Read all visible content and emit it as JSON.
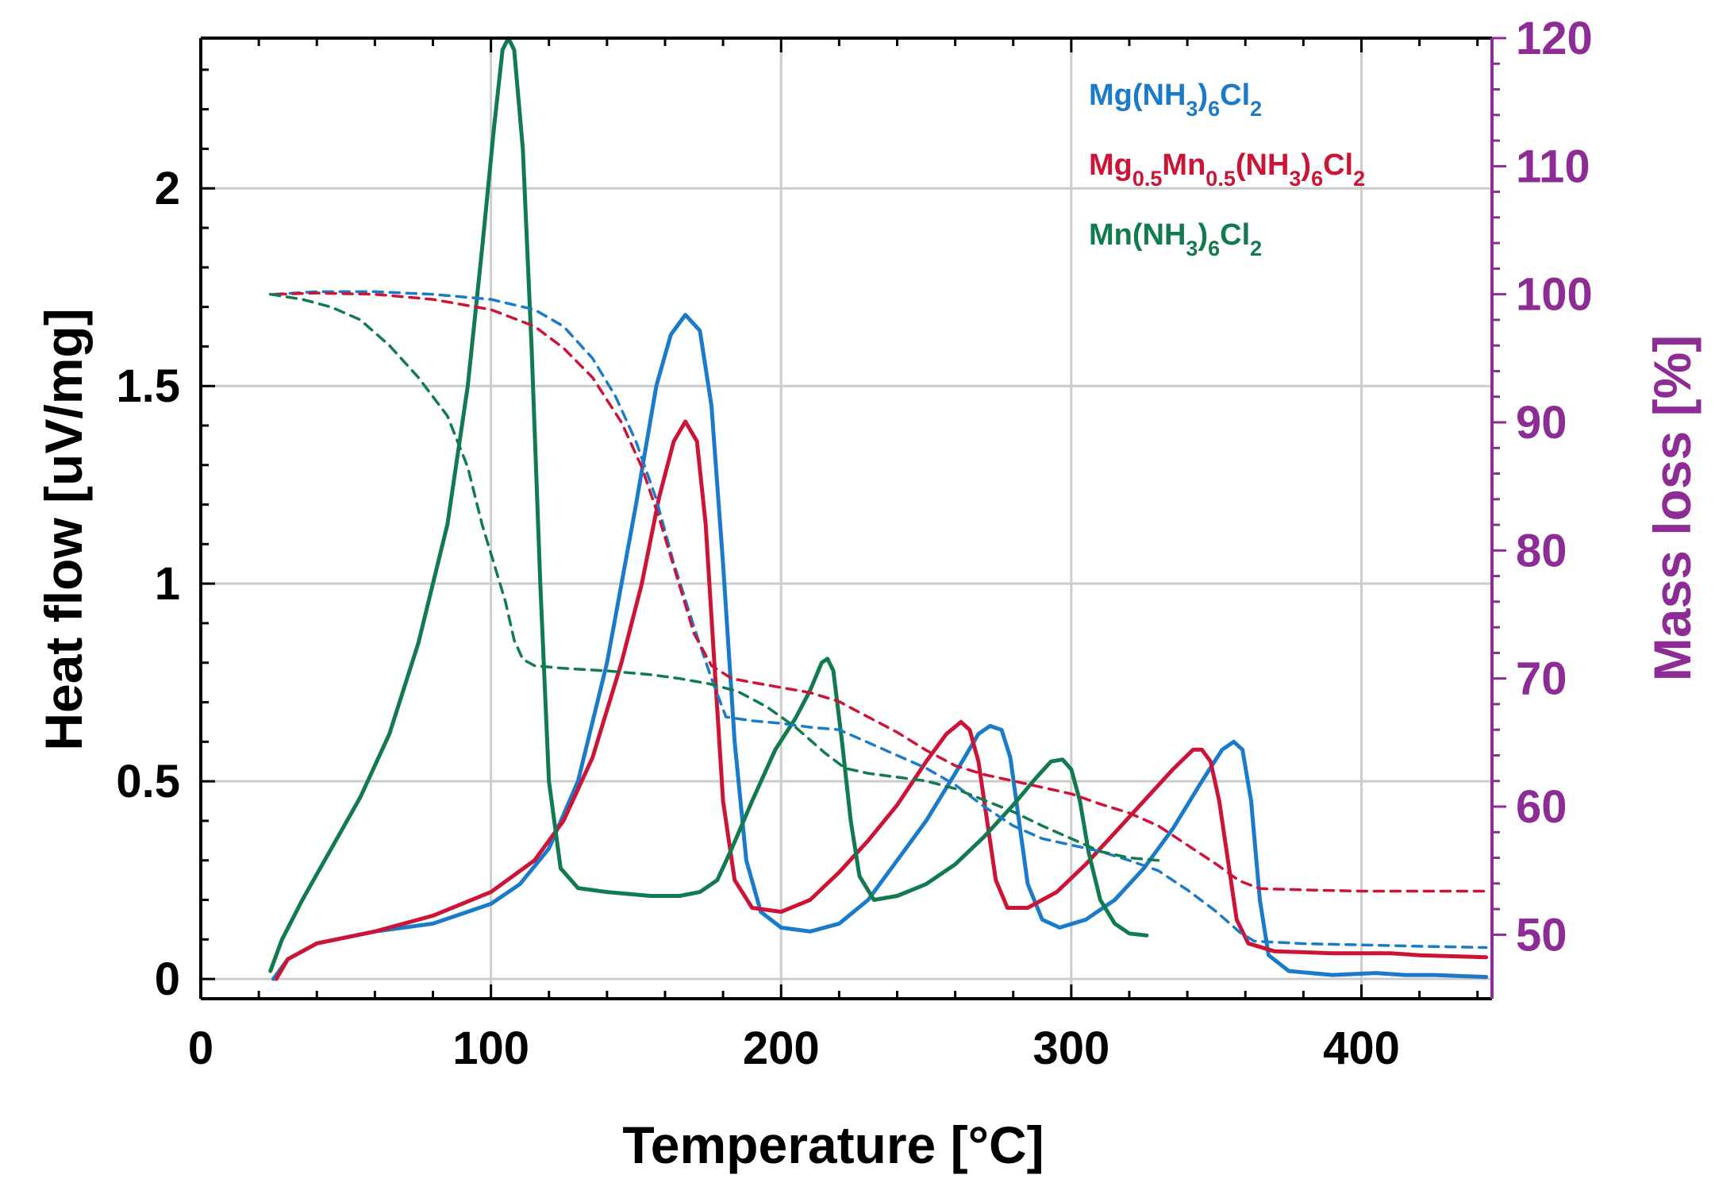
{
  "colors": {
    "blue": "#1b7bc9",
    "red": "#cc1536",
    "green": "#127a4f",
    "purple": "#8e2c95",
    "axis": "#000000",
    "grid": "#cccccc"
  },
  "chart_data": {
    "type": "line",
    "xlabel": "Temperature [°C]",
    "ylabel": "Heat flow [uV/mg]",
    "y2label": "Mass loss [%]",
    "xlim": [
      0,
      445
    ],
    "ylim": [
      -0.05,
      2.38
    ],
    "y2lim": [
      45,
      120
    ],
    "xticks": [
      0,
      100,
      200,
      300,
      400
    ],
    "xtick_labels": [
      "0",
      "100",
      "200",
      "300",
      "400"
    ],
    "yticks": [
      0,
      0.5,
      1,
      1.5,
      2
    ],
    "ytick_labels": [
      "0",
      "0.5",
      "1",
      "1.5",
      "2"
    ],
    "y2ticks": [
      50,
      60,
      70,
      80,
      90,
      100,
      110,
      120
    ],
    "y2tick_labels": [
      "50",
      "60",
      "70",
      "80",
      "90",
      "100",
      "110",
      "120"
    ],
    "grid": true,
    "legend_position": "top-right",
    "legend": [
      {
        "color": "blue",
        "parts": [
          [
            "Mg(NH",
            ""
          ],
          [
            "3",
            "sub"
          ],
          [
            ")",
            ""
          ],
          [
            "6",
            "sub"
          ],
          [
            "Cl",
            ""
          ],
          [
            "2",
            "sub"
          ]
        ]
      },
      {
        "color": "red",
        "parts": [
          [
            "Mg",
            ""
          ],
          [
            "0.5",
            "sub"
          ],
          [
            "Mn",
            ""
          ],
          [
            "0.5",
            "sub"
          ],
          [
            "(NH",
            ""
          ],
          [
            "3",
            "sub"
          ],
          [
            ")",
            ""
          ],
          [
            "6",
            "sub"
          ],
          [
            "Cl",
            ""
          ],
          [
            "2",
            "sub"
          ]
        ]
      },
      {
        "color": "green",
        "parts": [
          [
            "Mn(NH",
            ""
          ],
          [
            "3",
            "sub"
          ],
          [
            ")",
            ""
          ],
          [
            "6",
            "sub"
          ],
          [
            "Cl",
            ""
          ],
          [
            "2",
            "sub"
          ]
        ]
      }
    ],
    "series": [
      {
        "name": "Mg(NH3)6Cl2 heat flow",
        "color": "blue",
        "axis": "left",
        "style": "solid",
        "points": [
          [
            25,
            0
          ],
          [
            30,
            0.05
          ],
          [
            40,
            0.09
          ],
          [
            60,
            0.12
          ],
          [
            80,
            0.14
          ],
          [
            100,
            0.19
          ],
          [
            110,
            0.24
          ],
          [
            120,
            0.33
          ],
          [
            130,
            0.5
          ],
          [
            140,
            0.8
          ],
          [
            150,
            1.2
          ],
          [
            157,
            1.5
          ],
          [
            162,
            1.63
          ],
          [
            167,
            1.68
          ],
          [
            172,
            1.64
          ],
          [
            176,
            1.45
          ],
          [
            180,
            1.05
          ],
          [
            184,
            0.6
          ],
          [
            188,
            0.3
          ],
          [
            193,
            0.17
          ],
          [
            200,
            0.13
          ],
          [
            210,
            0.12
          ],
          [
            220,
            0.14
          ],
          [
            230,
            0.2
          ],
          [
            240,
            0.3
          ],
          [
            250,
            0.4
          ],
          [
            260,
            0.52
          ],
          [
            268,
            0.62
          ],
          [
            272,
            0.64
          ],
          [
            276,
            0.63
          ],
          [
            279,
            0.56
          ],
          [
            282,
            0.4
          ],
          [
            285,
            0.24
          ],
          [
            290,
            0.15
          ],
          [
            296,
            0.13
          ],
          [
            305,
            0.15
          ],
          [
            315,
            0.2
          ],
          [
            325,
            0.28
          ],
          [
            335,
            0.38
          ],
          [
            345,
            0.5
          ],
          [
            352,
            0.58
          ],
          [
            356,
            0.6
          ],
          [
            359,
            0.58
          ],
          [
            362,
            0.45
          ],
          [
            365,
            0.2
          ],
          [
            368,
            0.06
          ],
          [
            375,
            0.02
          ],
          [
            390,
            0.01
          ],
          [
            405,
            0.015
          ],
          [
            415,
            0.01
          ],
          [
            425,
            0.01
          ],
          [
            443,
            0.005
          ]
        ]
      },
      {
        "name": "Mg0.5Mn0.5(NH3)6Cl2 heat flow",
        "color": "red",
        "axis": "left",
        "style": "solid",
        "points": [
          [
            26,
            0
          ],
          [
            30,
            0.05
          ],
          [
            40,
            0.09
          ],
          [
            60,
            0.12
          ],
          [
            80,
            0.16
          ],
          [
            100,
            0.22
          ],
          [
            115,
            0.3
          ],
          [
            125,
            0.4
          ],
          [
            135,
            0.56
          ],
          [
            145,
            0.8
          ],
          [
            152,
            1.0
          ],
          [
            158,
            1.22
          ],
          [
            163,
            1.36
          ],
          [
            167,
            1.41
          ],
          [
            171,
            1.36
          ],
          [
            174,
            1.15
          ],
          [
            177,
            0.8
          ],
          [
            180,
            0.45
          ],
          [
            184,
            0.25
          ],
          [
            190,
            0.18
          ],
          [
            200,
            0.17
          ],
          [
            210,
            0.2
          ],
          [
            220,
            0.27
          ],
          [
            230,
            0.35
          ],
          [
            240,
            0.44
          ],
          [
            250,
            0.55
          ],
          [
            257,
            0.62
          ],
          [
            262,
            0.65
          ],
          [
            265,
            0.63
          ],
          [
            268,
            0.55
          ],
          [
            271,
            0.4
          ],
          [
            274,
            0.25
          ],
          [
            278,
            0.18
          ],
          [
            285,
            0.18
          ],
          [
            295,
            0.22
          ],
          [
            305,
            0.29
          ],
          [
            315,
            0.37
          ],
          [
            325,
            0.45
          ],
          [
            335,
            0.53
          ],
          [
            342,
            0.58
          ],
          [
            345,
            0.58
          ],
          [
            348,
            0.55
          ],
          [
            351,
            0.45
          ],
          [
            354,
            0.3
          ],
          [
            357,
            0.15
          ],
          [
            361,
            0.09
          ],
          [
            370,
            0.07
          ],
          [
            390,
            0.065
          ],
          [
            410,
            0.065
          ],
          [
            420,
            0.06
          ],
          [
            443,
            0.055
          ]
        ]
      },
      {
        "name": "Mn(NH3)6Cl2 heat flow",
        "color": "green",
        "axis": "left",
        "style": "solid",
        "points": [
          [
            24,
            0.02
          ],
          [
            28,
            0.1
          ],
          [
            35,
            0.2
          ],
          [
            45,
            0.33
          ],
          [
            55,
            0.46
          ],
          [
            65,
            0.62
          ],
          [
            75,
            0.85
          ],
          [
            85,
            1.15
          ],
          [
            92,
            1.5
          ],
          [
            97,
            1.85
          ],
          [
            101,
            2.15
          ],
          [
            104,
            2.35
          ],
          [
            106,
            2.38
          ],
          [
            108,
            2.35
          ],
          [
            111,
            2.1
          ],
          [
            114,
            1.6
          ],
          [
            117,
            1.0
          ],
          [
            120,
            0.5
          ],
          [
            124,
            0.28
          ],
          [
            130,
            0.23
          ],
          [
            140,
            0.22
          ],
          [
            155,
            0.21
          ],
          [
            165,
            0.21
          ],
          [
            172,
            0.22
          ],
          [
            178,
            0.25
          ],
          [
            183,
            0.33
          ],
          [
            190,
            0.45
          ],
          [
            198,
            0.58
          ],
          [
            205,
            0.66
          ],
          [
            210,
            0.73
          ],
          [
            214,
            0.8
          ],
          [
            216,
            0.81
          ],
          [
            218,
            0.78
          ],
          [
            221,
            0.6
          ],
          [
            224,
            0.4
          ],
          [
            227,
            0.26
          ],
          [
            232,
            0.2
          ],
          [
            240,
            0.21
          ],
          [
            250,
            0.24
          ],
          [
            260,
            0.29
          ],
          [
            270,
            0.36
          ],
          [
            280,
            0.44
          ],
          [
            288,
            0.51
          ],
          [
            293,
            0.55
          ],
          [
            297,
            0.555
          ],
          [
            300,
            0.53
          ],
          [
            303,
            0.45
          ],
          [
            306,
            0.32
          ],
          [
            310,
            0.2
          ],
          [
            315,
            0.14
          ],
          [
            320,
            0.115
          ],
          [
            326,
            0.11
          ]
        ]
      },
      {
        "name": "Mg(NH3)6Cl2 mass loss",
        "color": "blue",
        "axis": "right",
        "style": "dashed",
        "points": [
          [
            25,
            100
          ],
          [
            40,
            100.2
          ],
          [
            60,
            100.2
          ],
          [
            80,
            100
          ],
          [
            100,
            99.6
          ],
          [
            115,
            98.8
          ],
          [
            125,
            97.5
          ],
          [
            135,
            95
          ],
          [
            143,
            92
          ],
          [
            150,
            88.5
          ],
          [
            157,
            84
          ],
          [
            163,
            79
          ],
          [
            170,
            74
          ],
          [
            176,
            70
          ],
          [
            181,
            67
          ],
          [
            190,
            66.7
          ],
          [
            200,
            66.5
          ],
          [
            210,
            66.2
          ],
          [
            220,
            66
          ],
          [
            230,
            65
          ],
          [
            240,
            64
          ],
          [
            250,
            63
          ],
          [
            260,
            61.7
          ],
          [
            270,
            60
          ],
          [
            280,
            58.5
          ],
          [
            290,
            57.5
          ],
          [
            300,
            57
          ],
          [
            310,
            56.5
          ],
          [
            320,
            55.8
          ],
          [
            330,
            55
          ],
          [
            340,
            53.5
          ],
          [
            350,
            51.8
          ],
          [
            358,
            50.2
          ],
          [
            363,
            49.5
          ],
          [
            380,
            49.3
          ],
          [
            400,
            49.2
          ],
          [
            420,
            49.1
          ],
          [
            443,
            49
          ]
        ]
      },
      {
        "name": "Mg0.5Mn0.5(NH3)6Cl2 mass loss",
        "color": "red",
        "axis": "right",
        "style": "dashed",
        "points": [
          [
            26,
            100
          ],
          [
            40,
            100.1
          ],
          [
            60,
            100
          ],
          [
            80,
            99.6
          ],
          [
            100,
            98.8
          ],
          [
            115,
            97.5
          ],
          [
            125,
            95.8
          ],
          [
            135,
            93.5
          ],
          [
            145,
            90
          ],
          [
            152,
            86.5
          ],
          [
            158,
            82.5
          ],
          [
            164,
            78
          ],
          [
            170,
            73.5
          ],
          [
            176,
            71
          ],
          [
            183,
            70
          ],
          [
            190,
            69.7
          ],
          [
            200,
            69.3
          ],
          [
            210,
            68.9
          ],
          [
            220,
            68.2
          ],
          [
            230,
            67
          ],
          [
            240,
            65.8
          ],
          [
            250,
            64.4
          ],
          [
            260,
            63.2
          ],
          [
            270,
            62.5
          ],
          [
            280,
            62
          ],
          [
            290,
            61.5
          ],
          [
            300,
            61
          ],
          [
            310,
            60.2
          ],
          [
            320,
            59.5
          ],
          [
            330,
            58.5
          ],
          [
            340,
            57
          ],
          [
            350,
            55.5
          ],
          [
            358,
            54.2
          ],
          [
            365,
            53.6
          ],
          [
            380,
            53.5
          ],
          [
            400,
            53.4
          ],
          [
            420,
            53.4
          ],
          [
            443,
            53.4
          ]
        ]
      },
      {
        "name": "Mn(NH3)6Cl2 mass loss",
        "color": "green",
        "axis": "right",
        "style": "dashed",
        "points": [
          [
            24,
            100
          ],
          [
            35,
            99.6
          ],
          [
            45,
            99
          ],
          [
            55,
            98
          ],
          [
            65,
            96
          ],
          [
            75,
            93.5
          ],
          [
            85,
            90.5
          ],
          [
            92,
            86.5
          ],
          [
            97,
            82
          ],
          [
            101,
            79
          ],
          [
            105,
            76
          ],
          [
            108,
            73
          ],
          [
            111,
            71.5
          ],
          [
            115,
            71
          ],
          [
            125,
            70.8
          ],
          [
            140,
            70.6
          ],
          [
            155,
            70.3
          ],
          [
            165,
            70
          ],
          [
            175,
            69.6
          ],
          [
            185,
            69
          ],
          [
            195,
            67.8
          ],
          [
            205,
            66.2
          ],
          [
            215,
            64.2
          ],
          [
            222,
            63
          ],
          [
            230,
            62.6
          ],
          [
            240,
            62.3
          ],
          [
            250,
            62
          ],
          [
            260,
            61.4
          ],
          [
            270,
            60.5
          ],
          [
            280,
            59.6
          ],
          [
            290,
            58.5
          ],
          [
            300,
            57.5
          ],
          [
            310,
            56.5
          ],
          [
            320,
            56
          ],
          [
            330,
            55.8
          ]
        ]
      }
    ]
  }
}
